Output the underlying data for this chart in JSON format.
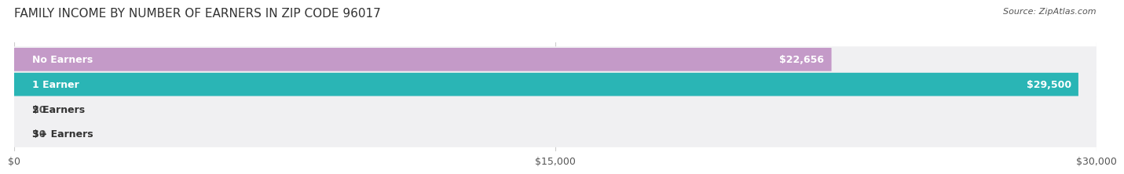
{
  "title": "FAMILY INCOME BY NUMBER OF EARNERS IN ZIP CODE 96017",
  "source": "Source: ZipAtlas.com",
  "categories": [
    "No Earners",
    "1 Earner",
    "2 Earners",
    "3+ Earners"
  ],
  "values": [
    22656,
    29500,
    0,
    0
  ],
  "value_labels": [
    "$22,656",
    "$29,500",
    "$0",
    "$0"
  ],
  "bar_colors": [
    "#c49ac8",
    "#2ab5b5",
    "#9fa8d5",
    "#f5a0b0"
  ],
  "bar_bg_color": "#f0f0f0",
  "background_color": "#ffffff",
  "row_bg_colors": [
    "#f5f5f5",
    "#f5f5f5",
    "#f5f5f5",
    "#f5f5f5"
  ],
  "xlim": [
    0,
    30000
  ],
  "xticks": [
    0,
    15000,
    30000
  ],
  "xticklabels": [
    "$0",
    "$15,000",
    "$30,000"
  ],
  "title_fontsize": 11,
  "label_fontsize": 9,
  "tick_fontsize": 9,
  "source_fontsize": 8
}
